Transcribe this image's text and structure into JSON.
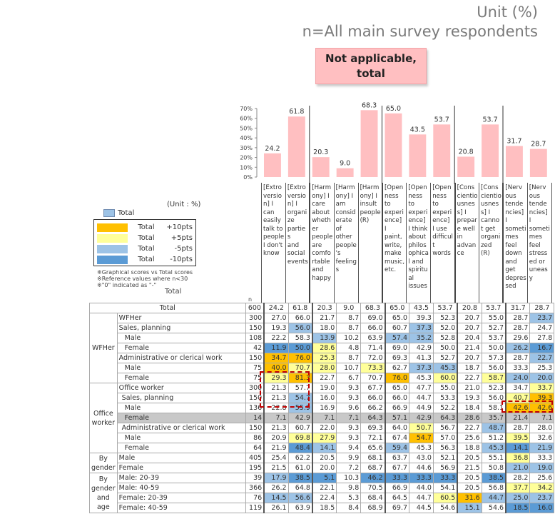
{
  "header": {
    "unit": "Unit (%)",
    "respondents": "n=All main survey respondents",
    "callout": "Not applicable, total"
  },
  "legend": {
    "unit_label": "(Unit : %)",
    "total_key": "Total",
    "rows": [
      {
        "label": "Total",
        "value": "+10pts",
        "color": "#ffc000"
      },
      {
        "label": "Total",
        "value": "+5pts",
        "color": "#ffff99"
      },
      {
        "label": "Total",
        "value": "-5pts",
        "color": "#9dc3e6"
      },
      {
        "label": "Total",
        "value": "-10pts",
        "color": "#5b9bd5"
      }
    ],
    "notes": [
      "※Graphical scores vs Total scores",
      "※Reference values where n<30",
      "※\"0\" indicated as \"-\""
    ],
    "total_label": "Total",
    "n_label": "n"
  },
  "chart_data": {
    "type": "bar",
    "title": "Not applicable, total",
    "ylim": [
      0,
      70
    ],
    "yticks": [
      "0%",
      "10%",
      "20%",
      "30%",
      "40%",
      "50%",
      "60%",
      "70%"
    ],
    "bar_color": "#ffbfc1",
    "categories": [
      "[Extroversion] I can easily talk to people I don't know",
      "[Extroversion] I organize parties and social events",
      "[Harmony] I care about whether people are comfortable and happy",
      "[Harmony] I am considerate of other people's feelings",
      "[Harmony] I insult people (R)",
      "[Openness to experience] I paint, write, make music, etc.",
      "[Openness to experience] I think about philosophical and spiritual issues",
      "[Openness to experience] I use difficult words",
      "[Conscientiousness] I prepare well in advance",
      "[Conscientiousness] I cannot get organized (R)",
      "[Nervous tendencies] I sometimes feel down and get depressed",
      "[Nervous tendencies] I sometimes feel stressed or uneasy"
    ],
    "values": [
      24.2,
      61.8,
      20.3,
      9.0,
      68.3,
      65.0,
      43.5,
      53.7,
      20.8,
      53.7,
      31.7,
      28.7
    ],
    "value_labels": [
      "24.2",
      "61.8",
      "20.3",
      "9.0",
      "68.3",
      "65.0",
      "43.5",
      "53.7",
      "20.8",
      "53.7",
      "31.7",
      "28.7"
    ],
    "group_dividers_after": [
      1,
      4,
      7,
      9
    ]
  },
  "column_headers": [
    "[Extroversion] I can easily talk to people I don't know",
    "[Extroversion] I organize parties and social events",
    "[Harmony] I care about whether people are comfortable and happy",
    "[Harmony] I am considerate of other people's feelings",
    "[Harmony] I insult people (R)",
    "[Openness to experience] I paint, write, make music, etc.",
    "[Openness to experience] I think about philosophical and spiritual issues",
    "[Openness to experience] I use difficult words",
    "[Conscientiousness] I prepare well in advance",
    "[Conscientiousness] I cannot get organized (R)",
    "[Nervous tendencies] I sometimes feel down and get depressed",
    "[Nervous tendencies] I sometimes feel stressed or uneasy"
  ],
  "column_headers_wrapped": [
    "[Extro\nversio\nn] I\ncan\neasily\ntalk to\npeople\nI don't\nknow",
    "[Extro\nversio\nn] I\norgani\nze\nparties\nand\nsocial\nevents",
    "[Harm\nony] I\ncare\nabout\nwheth\ner\npeople\nare\ncomfo\nrtable\nand\nhappy",
    "[Harm\nony] I\nam\nconsid\nerate\nof\nother\npeople\n's\nfeeling\ns",
    "[Harm\nony] I\ninsult\npeople\n(R)",
    "[Open\nness\nto\nexperi\nence]\nI\npaint,\nwrite,\nmake\nmusic,\netc.",
    "[Open\nness\nto\nexperi\nence]\nI think\nabout\nphilos\nophica\nl and\nspiritu\nal\nissues",
    "[Open\nness\nto\nexperi\nence]\nI use\ndifficul\nt\nwords",
    "[Cons\ncientio\nusnes\ns] I\nprepar\ne well\nin\nadvan\nce",
    "[Cons\ncientio\nusnes\ns] I\ncanno\nt get\norgani\nzed\n(R)",
    "[Nerv\nous\ntende\nncies]\nI\nsometi\nmes\nfeel\ndown\nand\nget\ndepres\nsed",
    "[Nerv\nous\ntende\nncies]\nI\nsometi\nmes\nfeel\nstress\ned or\nuneas\ny"
  ],
  "table": {
    "rows": [
      {
        "group": "",
        "label": "Total",
        "n": "600",
        "values": [
          "24.2",
          "61.8",
          "20.3",
          "9.0",
          "68.3",
          "65.0",
          "43.5",
          "53.7",
          "20.8",
          "53.7",
          "31.7",
          "28.7"
        ],
        "colors": [
          "",
          "",
          "",
          "",
          "",
          "",
          "",
          "",
          "",
          "",
          "",
          ""
        ]
      },
      {
        "group": "WFHer",
        "label": "WFHer",
        "n": "300",
        "values": [
          "27.0",
          "66.0",
          "21.7",
          "8.7",
          "69.0",
          "65.0",
          "39.3",
          "52.3",
          "20.7",
          "55.0",
          "28.7",
          "23.7"
        ],
        "colors": [
          "",
          "",
          "",
          "",
          "",
          "",
          "",
          "",
          "",
          "",
          "",
          "m5"
        ]
      },
      {
        "group": "WFHer",
        "label": "Sales, planning",
        "n": "150",
        "values": [
          "19.3",
          "56.0",
          "18.0",
          "8.7",
          "66.0",
          "60.7",
          "37.3",
          "52.0",
          "20.7",
          "52.7",
          "28.7",
          "24.7"
        ],
        "colors": [
          "",
          "m5",
          "",
          "",
          "",
          "",
          "m5",
          "",
          "",
          "",
          "",
          ""
        ]
      },
      {
        "group": "WFHer",
        "label": "Male",
        "n": "108",
        "values": [
          "22.2",
          "58.3",
          "13.9",
          "10.2",
          "63.9",
          "57.4",
          "35.2",
          "52.8",
          "20.4",
          "53.7",
          "29.6",
          "27.8"
        ],
        "colors": [
          "",
          "",
          "m5",
          "",
          "",
          "m5",
          "m5",
          "",
          "",
          "",
          "",
          ""
        ]
      },
      {
        "group": "WFHer",
        "label": "Female",
        "n": "42",
        "values": [
          "11.9",
          "50.0",
          "28.6",
          "4.8",
          "71.4",
          "69.0",
          "42.9",
          "50.0",
          "21.4",
          "50.0",
          "26.2",
          "16.7"
        ],
        "colors": [
          "m10",
          "m10",
          "p5",
          "",
          "",
          "",
          "",
          "",
          "",
          "",
          "m5",
          "m10"
        ]
      },
      {
        "group": "WFHer",
        "label": "Administrative or clerical work",
        "n": "150",
        "values": [
          "34.7",
          "76.0",
          "25.3",
          "8.7",
          "72.0",
          "69.3",
          "41.3",
          "52.7",
          "20.7",
          "57.3",
          "28.7",
          "22.7"
        ],
        "colors": [
          "p10",
          "p10",
          "p5",
          "",
          "",
          "",
          "",
          "",
          "",
          "",
          "",
          "m5"
        ]
      },
      {
        "group": "WFHer",
        "label": "Male",
        "n": "75",
        "values": [
          "40.0",
          "70.7",
          "28.0",
          "10.7",
          "73.3",
          "62.7",
          "37.3",
          "45.3",
          "18.7",
          "56.0",
          "33.3",
          "25.3"
        ],
        "colors": [
          "p10",
          "p5",
          "p5",
          "",
          "p5",
          "",
          "m5",
          "m5",
          "",
          "",
          "",
          ""
        ]
      },
      {
        "group": "WFHer",
        "label": "Female",
        "n": "75",
        "values": [
          "29.3",
          "81.3",
          "22.7",
          "6.7",
          "70.7",
          "76.0",
          "45.3",
          "60.0",
          "22.7",
          "58.7",
          "24.0",
          "20.0"
        ],
        "colors": [
          "p5",
          "p10",
          "",
          "",
          "",
          "p10",
          "",
          "p5",
          "",
          "p5",
          "m5",
          "m5"
        ]
      },
      {
        "group": "Office worker",
        "label": "Office worker",
        "n": "300",
        "values": [
          "21.3",
          "57.7",
          "19.0",
          "9.3",
          "67.7",
          "65.0",
          "47.7",
          "55.0",
          "21.0",
          "52.3",
          "34.7",
          "33.7"
        ],
        "colors": [
          "",
          "",
          "",
          "",
          "",
          "",
          "",
          "",
          "",
          "",
          "",
          "p5"
        ]
      },
      {
        "group": "Office worker",
        "label": "Sales, planning",
        "n": "150",
        "values": [
          "21.3",
          "54.7",
          "16.0",
          "9.3",
          "66.0",
          "66.0",
          "44.7",
          "53.3",
          "19.3",
          "56.0",
          "40.7",
          "39.3"
        ],
        "colors": [
          "",
          "m5",
          "",
          "",
          "",
          "",
          "",
          "",
          "",
          "",
          "p5",
          "p10"
        ]
      },
      {
        "group": "Office worker",
        "label": "Male",
        "n": "136",
        "values": [
          "22.8",
          "55.9",
          "16.9",
          "9.6",
          "66.2",
          "66.9",
          "44.9",
          "52.2",
          "18.4",
          "58.1",
          "42.6",
          "42.6"
        ],
        "colors": [
          "",
          "m5",
          "",
          "",
          "",
          "",
          "",
          "",
          "",
          "",
          "p10",
          "p10"
        ]
      },
      {
        "group": "Office worker",
        "label": "Female",
        "n": "14",
        "values": [
          "7.1",
          "42.9",
          "7.1",
          "7.1",
          "64.3",
          "57.1",
          "42.9",
          "64.3",
          "28.6",
          "35.7",
          "21.4",
          "7.1"
        ],
        "colors": [
          "",
          "",
          "",
          "",
          "",
          "",
          "",
          "",
          "",
          "",
          "",
          ""
        ],
        "reference": true
      },
      {
        "group": "Office worker",
        "label": "Administrative or clerical work",
        "n": "150",
        "values": [
          "21.3",
          "60.7",
          "22.0",
          "9.3",
          "69.3",
          "64.0",
          "50.7",
          "56.7",
          "22.7",
          "48.7",
          "28.7",
          "28.0"
        ],
        "colors": [
          "",
          "",
          "",
          "",
          "",
          "",
          "p5",
          "",
          "",
          "m5",
          "",
          ""
        ]
      },
      {
        "group": "Office worker",
        "label": "Male",
        "n": "86",
        "values": [
          "20.9",
          "69.8",
          "27.9",
          "9.3",
          "72.1",
          "67.4",
          "54.7",
          "57.0",
          "25.6",
          "51.2",
          "39.5",
          "32.6"
        ],
        "colors": [
          "",
          "p5",
          "p5",
          "",
          "",
          "",
          "p10",
          "",
          "",
          "",
          "p5",
          ""
        ]
      },
      {
        "group": "Office worker",
        "label": "Female",
        "n": "64",
        "values": [
          "21.9",
          "48.4",
          "14.1",
          "9.4",
          "65.6",
          "59.4",
          "45.3",
          "56.3",
          "18.8",
          "45.3",
          "14.1",
          "21.9"
        ],
        "colors": [
          "",
          "m10",
          "m5",
          "",
          "",
          "m5",
          "",
          "",
          "",
          "m5",
          "m10",
          "m5"
        ]
      },
      {
        "group": "By gender",
        "label": "Male",
        "n": "405",
        "values": [
          "25.4",
          "62.2",
          "20.5",
          "9.9",
          "68.1",
          "63.7",
          "43.0",
          "52.1",
          "20.5",
          "55.1",
          "36.8",
          "33.3"
        ],
        "colors": [
          "",
          "",
          "",
          "",
          "",
          "",
          "",
          "",
          "",
          "",
          "p5",
          ""
        ]
      },
      {
        "group": "By gender",
        "label": "Female",
        "n": "195",
        "values": [
          "21.5",
          "61.0",
          "20.0",
          "7.2",
          "68.7",
          "67.7",
          "44.6",
          "56.9",
          "21.5",
          "50.8",
          "21.0",
          "19.0"
        ],
        "colors": [
          "",
          "",
          "",
          "",
          "",
          "",
          "",
          "",
          "",
          "",
          "m5",
          "m5"
        ]
      },
      {
        "group": "By gender and age",
        "label": "Male: 20-39",
        "n": "39",
        "values": [
          "17.9",
          "38.5",
          "5.1",
          "10.3",
          "46.2",
          "33.3",
          "33.3",
          "33.3",
          "20.5",
          "38.5",
          "28.2",
          "25.6"
        ],
        "colors": [
          "m5",
          "m10",
          "m10",
          "",
          "m10",
          "m10",
          "m10",
          "m10",
          "",
          "m10",
          "",
          ""
        ]
      },
      {
        "group": "By gender and age",
        "label": "Male: 40-59",
        "n": "366",
        "values": [
          "26.2",
          "64.8",
          "22.1",
          "9.8",
          "70.5",
          "66.9",
          "44.0",
          "54.1",
          "20.5",
          "56.8",
          "37.7",
          "34.2"
        ],
        "colors": [
          "",
          "",
          "",
          "",
          "",
          "",
          "",
          "",
          "",
          "",
          "p5",
          "p5"
        ]
      },
      {
        "group": "By gender and age",
        "label": "Female: 20-39",
        "n": "76",
        "values": [
          "14.5",
          "56.6",
          "22.4",
          "5.3",
          "68.4",
          "64.5",
          "44.7",
          "60.5",
          "31.6",
          "44.7",
          "25.0",
          "23.7"
        ],
        "colors": [
          "m5",
          "m5",
          "",
          "",
          "",
          "",
          "",
          "p5",
          "p10",
          "m5",
          "m5",
          "m5"
        ]
      },
      {
        "group": "By gender and age",
        "label": "Female: 40-59",
        "n": "119",
        "values": [
          "26.1",
          "63.9",
          "18.5",
          "8.4",
          "68.9",
          "69.7",
          "44.5",
          "54.6",
          "15.1",
          "54.6",
          "18.5",
          "16.0"
        ],
        "colors": [
          "",
          "",
          "",
          "",
          "",
          "",
          "",
          "",
          "m5",
          "",
          "m10",
          "m10"
        ]
      }
    ],
    "groups": [
      {
        "name": "WFHer",
        "label": "WFHer"
      },
      {
        "name": "Office worker",
        "label": "Office worker"
      },
      {
        "name": "By gender",
        "label": "By gender"
      },
      {
        "name": "By gender and age",
        "label": "By gender and age"
      }
    ]
  }
}
